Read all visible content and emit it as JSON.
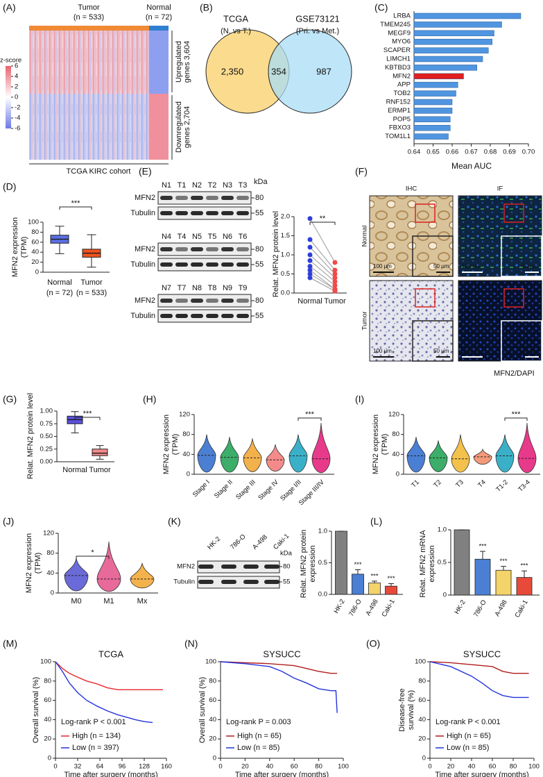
{
  "A": {
    "label": "(A)",
    "tumor": "Tumor",
    "tumor_n": "(n = 533)",
    "normal": "Normal",
    "normal_n": "(n = 72)",
    "zscore_title": "z-score",
    "zscore_ticks": [
      6,
      4,
      2,
      0,
      -2,
      -4,
      -6
    ],
    "up": [
      "Upregulated",
      "genes 3,604"
    ],
    "down": [
      "Downregulated",
      "genes 2,704"
    ],
    "cohort": "TCGA KIRC cohort"
  },
  "B": {
    "label": "(B)",
    "left_title": "TCGA",
    "left_sub": "(N. vs T.)",
    "right_title": "GSE73121",
    "right_sub": "(Pri. vs Met.)",
    "left_only": "2,350",
    "overlap": "354",
    "right_only": "987"
  },
  "C": {
    "label": "(C)",
    "type": "bar",
    "categories": [
      "LRBA",
      "TMEM245",
      "MEGF9",
      "MYO6",
      "SCAPER",
      "LIMCH1",
      "KBTBD3",
      "MFN2",
      "APP",
      "TOB2",
      "RNF152",
      "ERMP1",
      "POP5",
      "FBXO3",
      "TOM1L1"
    ],
    "values": [
      0.696,
      0.686,
      0.682,
      0.681,
      0.679,
      0.676,
      0.673,
      0.666,
      0.663,
      0.662,
      0.66,
      0.66,
      0.659,
      0.659,
      0.658
    ],
    "colors": [
      "#4f95e0",
      "#4f95e0",
      "#4f95e0",
      "#4f95e0",
      "#4f95e0",
      "#4f95e0",
      "#4f95e0",
      "#e01f1f",
      "#4f95e0",
      "#4f95e0",
      "#4f95e0",
      "#4f95e0",
      "#4f95e0",
      "#4f95e0",
      "#4f95e0"
    ],
    "xlim": [
      0.64,
      0.7
    ],
    "xticks": [
      0.64,
      0.65,
      0.66,
      0.67,
      0.68,
      0.69,
      {
        "value": 0.7,
        "label": "0.70"
      }
    ],
    "xlabel": "Mean AUC"
  },
  "D": {
    "label": "(D)",
    "type": "box",
    "ylabel": [
      "MFN2 expression",
      "(TPM)"
    ],
    "ylim": [
      0,
      100
    ],
    "yticks": [
      0,
      20,
      40,
      60,
      80,
      100
    ],
    "categories": [
      "Normal",
      "Tumor"
    ],
    "n_labels": [
      "(n = 72)",
      "(n = 533)"
    ],
    "boxes": [
      {
        "low": 37,
        "q1": 58,
        "median": 66,
        "q3": 74,
        "high": 92
      },
      {
        "low": 10,
        "q1": 30,
        "median": 38,
        "q3": 46,
        "high": 75
      }
    ],
    "colors": [
      "#5b6fe6",
      "#f0521f"
    ],
    "significance": "***"
  },
  "E": {
    "label": "(E)",
    "blots": [
      {
        "lanes": [
          "N1",
          "T1",
          "N2",
          "T2",
          "N3",
          "T3"
        ]
      },
      {
        "lanes": [
          "N4",
          "T4",
          "N5",
          "T5",
          "N6",
          "T6"
        ]
      },
      {
        "lanes": [
          "N7",
          "T7",
          "N8",
          "T8",
          "N9",
          "T9"
        ]
      }
    ],
    "protein": "MFN2",
    "loading": "Tubulin",
    "kda_title": "kDa",
    "kda_markers": [
      80,
      55
    ],
    "scatter": {
      "type": "scatter",
      "ylabel": "Relat. MFN2 protein level",
      "ylim": [
        0,
        2
      ],
      "yticks": [
        {
          "value": 0,
          "label": "0.0"
        },
        0.5,
        {
          "value": 1,
          "label": "1.0"
        },
        1.5,
        {
          "value": 2,
          "label": "2.0"
        }
      ],
      "categories": [
        "Normal",
        "Tumor"
      ],
      "normal": [
        1.95,
        1.4,
        1.2,
        1.0,
        0.85,
        0.7,
        0.6,
        0.5,
        0.4
      ],
      "tumor": [
        0.8,
        0.6,
        0.5,
        0.4,
        0.3,
        0.2,
        0.1,
        0.1,
        0.05
      ],
      "colors": [
        "#2f3fd9",
        "#f04a4a"
      ],
      "significance": "**"
    }
  },
  "F": {
    "label": "(F)",
    "columns": [
      "IHC",
      "IF"
    ],
    "rows": [
      "Normal",
      "Tumor"
    ],
    "scale_main": "100 μm",
    "scale_inset": "50 μm",
    "stain": [
      "MFN2",
      "/DAPI"
    ]
  },
  "G": {
    "label": "(G)",
    "type": "box",
    "ylabel": [
      "Relat. MFN2 protein level"
    ],
    "ylim": [
      0,
      1
    ],
    "yticks": [
      {
        "value": 0,
        "label": "0.00"
      },
      0.25,
      {
        "value": 0.5,
        "label": "0.50"
      },
      0.75,
      {
        "value": 1,
        "label": "1.00"
      }
    ],
    "categories": [
      "Normal",
      "Tumor"
    ],
    "boxes": [
      {
        "low": 0.57,
        "q1": 0.75,
        "median": 0.83,
        "q3": 0.9,
        "high": 0.99
      },
      {
        "low": 0.05,
        "q1": 0.12,
        "median": 0.17,
        "q3": 0.25,
        "high": 0.32
      }
    ],
    "colors": [
      "#5b50e0",
      "#f48a8a"
    ],
    "significance": "***"
  },
  "H": {
    "label": "(H)",
    "type": "violin",
    "ylabel": [
      "MFN2 expression",
      "(TPM)"
    ],
    "ylim": [
      0,
      120
    ],
    "yticks": [
      0,
      40,
      80,
      120
    ],
    "categories": [
      "Stage I",
      "Stage II",
      "Stage III",
      "Stage IV",
      "Stage I/II",
      "Stage III/IV"
    ],
    "violins": [
      {
        "min": 4,
        "median": 38,
        "max": 80
      },
      {
        "min": 4,
        "median": 34,
        "max": 75
      },
      {
        "min": 5,
        "median": 33,
        "max": 72
      },
      {
        "min": 6,
        "median": 29,
        "max": 60
      },
      {
        "min": 4,
        "median": 37,
        "max": 80
      },
      {
        "min": 3,
        "median": 31,
        "max": 103
      }
    ],
    "colors": [
      "#4a7fd4",
      "#3cae6a",
      "#f3b14c",
      "#f48a8a",
      "#3ab0c8",
      "#e83a8a"
    ],
    "significance": "***"
  },
  "I": {
    "label": "(I)",
    "type": "violin",
    "ylabel": [
      "MFN2 expression",
      "(TPM)"
    ],
    "ylim": [
      0,
      120
    ],
    "yticks": [
      0,
      40,
      80,
      120
    ],
    "categories": [
      "T1",
      "T2",
      "T3",
      "T4",
      "T1-2",
      "T3-4"
    ],
    "violins": [
      {
        "min": 4,
        "median": 37,
        "max": 75
      },
      {
        "min": 5,
        "median": 33,
        "max": 68
      },
      {
        "min": 4,
        "median": 31,
        "max": 80
      },
      {
        "min": 20,
        "median": 35,
        "max": 50
      },
      {
        "min": 4,
        "median": 37,
        "max": 80
      },
      {
        "min": 3,
        "median": 32,
        "max": 103
      }
    ],
    "colors": [
      "#4a7fd4",
      "#3cae6a",
      "#f3c14c",
      "#f49a7a",
      "#3ab0c8",
      "#e83a8a"
    ],
    "significance": "***"
  },
  "J": {
    "label": "(J)",
    "type": "violin",
    "ylabel": [
      "MFN2 expression",
      "(TPM)"
    ],
    "ylim": [
      0,
      120
    ],
    "yticks": [
      0,
      40,
      80,
      120
    ],
    "categories": [
      "M0",
      "M1",
      "Mx"
    ],
    "violins": [
      {
        "min": 4,
        "median": 35,
        "max": 70
      },
      {
        "min": 3,
        "median": 28,
        "max": 103
      },
      {
        "min": 10,
        "median": 28,
        "max": 60
      }
    ],
    "colors": [
      "#6a6ad8",
      "#e86a9a",
      "#f3b34c"
    ],
    "significance": "*"
  },
  "K": {
    "label": "(K)",
    "lanes": [
      "HK-2",
      "786-O",
      "A-498",
      "Caki-1"
    ],
    "protein": "MFN2",
    "loading": "Tubulin",
    "kda_title": "kDa",
    "kda_markers": [
      80,
      55
    ],
    "bars": {
      "type": "bar",
      "ylabel": [
        "Relat. MFN2 protein",
        "expression"
      ],
      "ylim": [
        0,
        1
      ],
      "yticks": [
        {
          "value": 0,
          "label": "0.0"
        },
        0.5,
        {
          "value": 1,
          "label": "1.0"
        }
      ],
      "categories": [
        "HK-2",
        "786-O",
        "A-498",
        "Caki-1"
      ],
      "values": [
        1,
        0.32,
        0.18,
        0.13
      ],
      "errors": [
        0,
        0.07,
        0.03,
        0.04
      ],
      "colors": [
        "#808080",
        "#4a7fd4",
        "#f3d36a",
        "#e84a3a"
      ],
      "significance": [
        "***",
        "***",
        "***"
      ]
    }
  },
  "L": {
    "label": "(L)",
    "type": "bar",
    "ylabel": [
      "Relat. MFN2 mRNA",
      "expression"
    ],
    "ylim": [
      0,
      1
    ],
    "yticks": [
      0,
      0.5,
      {
        "value": 1,
        "label": "1.0"
      }
    ],
    "categories": [
      "HK-2",
      "786-O",
      "A-498",
      "Caki-1"
    ],
    "values": [
      1,
      0.55,
      0.38,
      0.27
    ],
    "errors": [
      0,
      0.12,
      0.06,
      0.1
    ],
    "colors": [
      "#808080",
      "#4a7fd4",
      "#f3d36a",
      "#e84a3a"
    ],
    "significance": [
      "***",
      "***",
      "***"
    ]
  },
  "M": {
    "label": "(M)",
    "type": "line",
    "title": "TCGA",
    "ylabel": [
      "Overall survival (%)"
    ],
    "xlabel": "Time after surgery (months)",
    "xlim": [
      0,
      160
    ],
    "xticks": [
      0,
      32,
      64,
      96,
      128,
      160
    ],
    "ylim": [
      0,
      100
    ],
    "yticks": [
      0,
      20,
      40,
      60,
      80,
      100
    ],
    "stat": "Log-rank P < 0.001",
    "series": [
      {
        "name": "High (n = 134)",
        "color": "#e8262a",
        "x": [
          0,
          10,
          20,
          32,
          45,
          60,
          75,
          90,
          110,
          128,
          155
        ],
        "values": [
          100,
          93,
          88,
          84,
          80,
          77,
          73,
          71,
          71,
          71,
          71
        ]
      },
      {
        "name": "Low (n = 397)",
        "color": "#2233dd",
        "x": [
          0,
          10,
          20,
          32,
          45,
          60,
          75,
          90,
          100,
          115,
          128,
          140
        ],
        "values": [
          100,
          90,
          78,
          68,
          60,
          54,
          49,
          45,
          43,
          40,
          38,
          37
        ]
      }
    ]
  },
  "N": {
    "label": "(N)",
    "type": "line",
    "title": "SYSUCC",
    "ylabel": [
      "Overall survival (%)"
    ],
    "xlabel": "Time after surgery (months)",
    "xlim": [
      0,
      100
    ],
    "xticks": [
      0,
      20,
      40,
      60,
      80,
      100
    ],
    "ylim": [
      0,
      100
    ],
    "yticks": [
      0,
      20,
      40,
      60,
      80,
      100
    ],
    "stat": "Log-rank P = 0.003",
    "series": [
      {
        "name": "High (n = 65)",
        "color": "#b01c1c",
        "x": [
          0,
          20,
          40,
          60,
          70,
          80,
          90,
          95
        ],
        "values": [
          100,
          99,
          98,
          96,
          93,
          90,
          88,
          88
        ]
      },
      {
        "name": "Low (n = 85)",
        "color": "#2233dd",
        "x": [
          0,
          20,
          40,
          50,
          60,
          70,
          80,
          90,
          94,
          95
        ],
        "values": [
          100,
          98,
          95,
          90,
          83,
          78,
          72,
          70,
          70,
          47
        ]
      }
    ]
  },
  "O": {
    "label": "(O)",
    "type": "line",
    "title": "SYSUCC",
    "ylabel": [
      "Disease-free",
      "survival (%)"
    ],
    "xlabel": "Time after surgery (months)",
    "xlim": [
      0,
      100
    ],
    "xticks": [
      0,
      20,
      40,
      60,
      80,
      100
    ],
    "ylim": [
      0,
      100
    ],
    "yticks": [
      0,
      20,
      40,
      60,
      80,
      100
    ],
    "stat": "Log-rank P < 0.001",
    "series": [
      {
        "name": "High (n = 65)",
        "color": "#b01c1c",
        "x": [
          0,
          20,
          40,
          60,
          70,
          80,
          95
        ],
        "values": [
          100,
          99,
          97,
          95,
          90,
          88,
          88
        ]
      },
      {
        "name": "Low (n = 85)",
        "color": "#2233dd",
        "x": [
          0,
          20,
          40,
          50,
          60,
          70,
          80,
          95
        ],
        "values": [
          100,
          95,
          85,
          78,
          70,
          65,
          63,
          63
        ]
      }
    ]
  }
}
